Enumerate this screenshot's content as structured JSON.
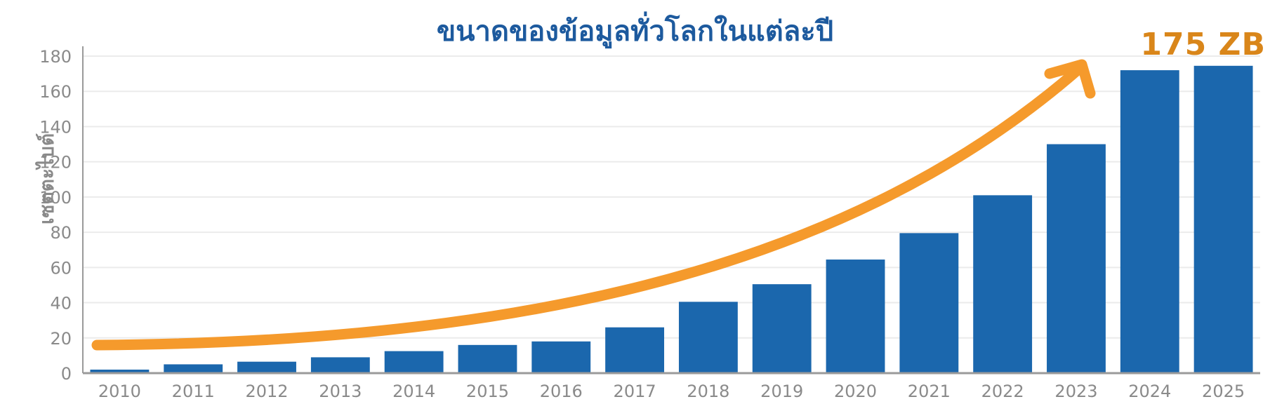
{
  "chart_data": {
    "type": "bar",
    "title": "ขนาดของข้อมูลทั่วโลกในแต่ละปี",
    "ylabel": "เซตตะไบต์",
    "xlabel": "",
    "categories": [
      "2010",
      "2011",
      "2012",
      "2013",
      "2014",
      "2015",
      "2016",
      "2017",
      "2018",
      "2019",
      "2020",
      "2021",
      "2022",
      "2023",
      "2024",
      "2025"
    ],
    "values": [
      2,
      5,
      6.5,
      9,
      12.5,
      16,
      18,
      26,
      40.5,
      50.5,
      64.5,
      79.5,
      101,
      130,
      172,
      174.5
    ],
    "ylim": [
      0,
      180
    ],
    "yticks": [
      0,
      20,
      40,
      60,
      80,
      100,
      120,
      140,
      160,
      180
    ],
    "annotation": "175 ZB",
    "grid": true,
    "colors": {
      "bar": "#1b67ad",
      "trend_arrow": "#f59a2c",
      "annotation": "#d9861a",
      "title": "#1d5a9e"
    }
  }
}
